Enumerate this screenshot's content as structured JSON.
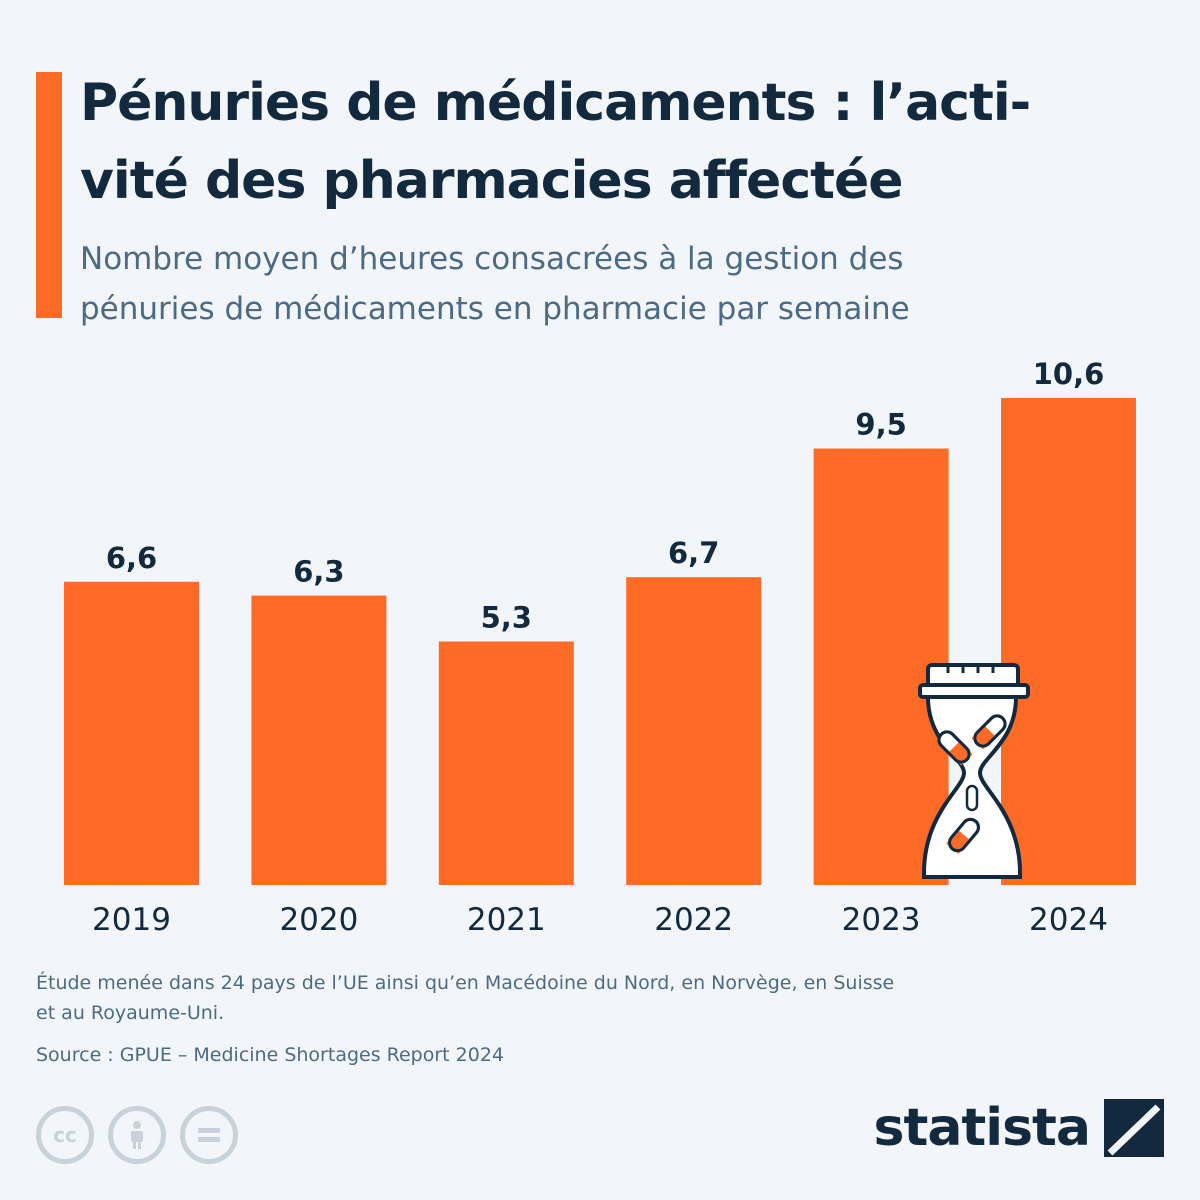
{
  "header": {
    "title_line1": "Pénuries de médicaments : l’acti-",
    "title_line2": "vité des pharmacies affectée",
    "subtitle_line1": "Nombre moyen d’heures consacrées à la gestion des",
    "subtitle_line2": "pénuries de médicaments en pharmacie par semaine"
  },
  "footer": {
    "note_line1": "Étude menée dans 24 pays de l’UE ainsi qu’en Macédoine du Nord, en Norvège, en Suisse",
    "note_line2": "et au Royaume-Uni.",
    "source": "Source : GPUE – Medicine Shortages Report 2024",
    "brand": "statista",
    "license_icons": [
      "cc-icon",
      "attribution-icon",
      "no-derivatives-icon"
    ]
  },
  "colors": {
    "bar": "#fe6b26",
    "text_dark": "#13293d",
    "text_muted": "#4d6a84",
    "background": "#f2f6fa"
  },
  "chart_data": {
    "type": "bar",
    "categories": [
      "2019",
      "2020",
      "2021",
      "2022",
      "2023",
      "2024"
    ],
    "values": [
      6.6,
      6.3,
      5.3,
      6.7,
      9.5,
      10.6
    ],
    "value_labels": [
      "6,6",
      "6,3",
      "5,3",
      "6,7",
      "9,5",
      "10,6"
    ],
    "ylim": [
      0,
      10.6
    ],
    "grid": false,
    "legend": "none",
    "decoration": "hourglass-with-pills-icon"
  }
}
